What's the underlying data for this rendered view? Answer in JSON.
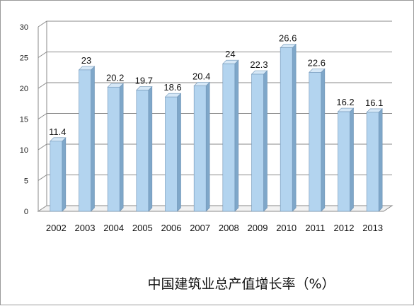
{
  "chart_data": {
    "type": "bar",
    "title": "中国建筑业总产值增长率（%）",
    "categories": [
      "2002",
      "2003",
      "2004",
      "2005",
      "2006",
      "2007",
      "2008",
      "2009",
      "2010",
      "2011",
      "2012",
      "2013"
    ],
    "values": [
      11.4,
      23,
      20.2,
      19.7,
      18.6,
      20.4,
      24,
      22.3,
      26.6,
      22.6,
      16.2,
      16.1
    ],
    "data_labels": [
      "11.4",
      "23",
      "20.2",
      "19.7",
      "18.6",
      "20.4",
      "24",
      "22.3",
      "26.6",
      "22.6",
      "16.2",
      "16.1"
    ],
    "yticks": [
      "0",
      "5",
      "10",
      "15",
      "20",
      "25",
      "30"
    ],
    "ylim": [
      0,
      30
    ],
    "xlabel": "",
    "ylabel": "",
    "grid": true,
    "legend": "none",
    "colors": {
      "bar_front": "#b3d4ef",
      "bar_side": "#7fa7c9",
      "bar_top": "#d6e8f7",
      "bar_stroke": "#6f94b6",
      "grid": "#8a8a8a"
    }
  }
}
